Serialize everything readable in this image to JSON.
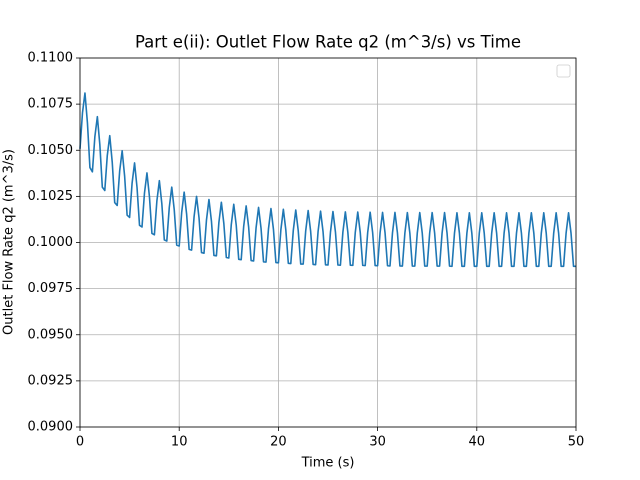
{
  "chart_data": {
    "type": "line",
    "title": "Part e(ii): Outlet Flow Rate q2 (m^3/s) vs Time",
    "x_label": "Time (s)",
    "y_label": "Outlet Flow Rate q2 (m^3/s)",
    "color": "#1f77b4",
    "grid": true,
    "legend": "upper right",
    "xlim": [
      0,
      50
    ],
    "ylim": [
      0.09,
      0.11
    ],
    "xticks": [
      0,
      10,
      20,
      30,
      40,
      50
    ],
    "yticks": [
      {
        "value": 0.09,
        "label": "0.0900"
      },
      {
        "value": 0.0925,
        "label": "0.0925"
      },
      {
        "value": 0.095,
        "label": "0.0950"
      },
      {
        "value": 0.0975,
        "label": "0.0975"
      },
      {
        "value": 0.1,
        "label": "0.1000"
      },
      {
        "value": 0.1025,
        "label": "0.1025"
      },
      {
        "value": 0.105,
        "label": "0.1050"
      },
      {
        "value": 0.1075,
        "label": "0.1075"
      },
      {
        "value": 0.11,
        "label": "0.1100"
      }
    ],
    "x": [
      0,
      0.25,
      0.5,
      0.75,
      1,
      1.25,
      1.5,
      1.75,
      2,
      2.25,
      2.5,
      2.75,
      3,
      3.25,
      3.5,
      3.75,
      4,
      4.25,
      4.5,
      4.75,
      5,
      5.25,
      5.5,
      5.75,
      6,
      6.25,
      6.5,
      6.75,
      7,
      7.25,
      7.5,
      7.75,
      8,
      8.25,
      8.5,
      8.75,
      9,
      9.25,
      9.5,
      9.75,
      10,
      10.25,
      10.5,
      10.75,
      11,
      11.25,
      11.5,
      11.75,
      12,
      12.25,
      12.5,
      12.75,
      13,
      13.25,
      13.5,
      13.75,
      14,
      14.25,
      14.5,
      14.75,
      15,
      15.25,
      15.5,
      15.75,
      16,
      16.25,
      16.5,
      16.75,
      17,
      17.25,
      17.5,
      17.75,
      18,
      18.25,
      18.5,
      18.75,
      19,
      19.25,
      19.5,
      19.75,
      20,
      20.25,
      20.5,
      20.75,
      21,
      21.25,
      21.5,
      21.75,
      22,
      22.25,
      22.5,
      22.75,
      23,
      23.25,
      23.5,
      23.75,
      24,
      24.25,
      24.5,
      24.75,
      25,
      25.25,
      25.5,
      25.75,
      26,
      26.25,
      26.5,
      26.75,
      27,
      27.25,
      27.5,
      27.75,
      28,
      28.25,
      28.5,
      28.75,
      29,
      29.25,
      29.5,
      29.75,
      30,
      30.25,
      30.5,
      30.75,
      31,
      31.25,
      31.5,
      31.75,
      32,
      32.25,
      32.5,
      32.75,
      33,
      33.25,
      33.5,
      33.75,
      34,
      34.25,
      34.5,
      34.75,
      35,
      35.25,
      35.5,
      35.75,
      36,
      36.25,
      36.5,
      36.75,
      37,
      37.25,
      37.5,
      37.75,
      38,
      38.25,
      38.5,
      38.75,
      39,
      39.25,
      39.5,
      39.75,
      40,
      40.25,
      40.5,
      40.75,
      41,
      41.25,
      41.5,
      41.75,
      42,
      42.25,
      42.5,
      42.75,
      43,
      43.25,
      43.5,
      43.75,
      44,
      44.25,
      44.5,
      44.75,
      45,
      45.25,
      45.5,
      45.75,
      46,
      46.25,
      46.5,
      46.75,
      47,
      47.25,
      47.5,
      47.75,
      48,
      48.25,
      48.5,
      48.75,
      49,
      49.25,
      49.5,
      49.75,
      50
    ],
    "values": [
      0.10508,
      0.10703,
      0.1081,
      0.10648,
      0.10406,
      0.10383,
      0.10574,
      0.10682,
      0.1053,
      0.103,
      0.10282,
      0.10471,
      0.10579,
      0.10435,
      0.10216,
      0.10201,
      0.10388,
      0.10497,
      0.10359,
      0.10148,
      0.10136,
      0.10321,
      0.10431,
      0.10298,
      0.10093,
      0.10084,
      0.10268,
      0.10377,
      0.10249,
      0.10049,
      0.10042,
      0.10225,
      0.10335,
      0.1021,
      0.10014,
      0.10008,
      0.1019,
      0.103,
      0.10178,
      0.09986,
      0.09981,
      0.10163,
      0.10273,
      0.10153,
      0.09963,
      0.09959,
      0.1014,
      0.1025,
      0.10133,
      0.09945,
      0.09942,
      0.10122,
      0.10233,
      0.10116,
      0.0993,
      0.09928,
      0.10108,
      0.10218,
      0.10103,
      0.09919,
      0.09916,
      0.10097,
      0.10207,
      0.10093,
      0.09909,
      0.09907,
      0.10087,
      0.10198,
      0.10084,
      0.09902,
      0.099,
      0.1008,
      0.1019,
      0.10077,
      0.09895,
      0.09894,
      0.10074,
      0.10184,
      0.10072,
      0.09891,
      0.0989,
      0.10069,
      0.1018,
      0.10067,
      0.09887,
      0.09886,
      0.10065,
      0.10176,
      0.10064,
      0.09883,
      0.09883,
      0.10062,
      0.10173,
      0.10061,
      0.09881,
      0.0988,
      0.1006,
      0.1017,
      0.10059,
      0.09879,
      0.09878,
      0.10057,
      0.10168,
      0.10057,
      0.09878,
      0.09877,
      0.10056,
      0.10166,
      0.10056,
      0.09877,
      0.09876,
      0.10055,
      0.10165,
      0.10055,
      0.09876,
      0.09875,
      0.10054,
      0.10164,
      0.10054,
      0.09875,
      0.09874,
      0.10053,
      0.10163,
      0.10053,
      0.09874,
      0.09873,
      0.10052,
      0.10163,
      0.10052,
      0.09873,
      0.09872,
      0.10051,
      0.10162,
      0.10051,
      0.09872,
      0.09872,
      0.10051,
      0.10162,
      0.10051,
      0.09872,
      0.09872,
      0.10051,
      0.10162,
      0.10051,
      0.09872,
      0.09872,
      0.10051,
      0.10162,
      0.10051,
      0.09872,
      0.09871,
      0.1005,
      0.10161,
      0.1005,
      0.09871,
      0.09871,
      0.1005,
      0.10161,
      0.1005,
      0.09871,
      0.09871,
      0.1005,
      0.10161,
      0.1005,
      0.09871,
      0.09871,
      0.1005,
      0.10161,
      0.1005,
      0.09871,
      0.09871,
      0.1005,
      0.10161,
      0.1005,
      0.09871,
      0.09871,
      0.1005,
      0.10161,
      0.1005,
      0.09871,
      0.09871,
      0.1005,
      0.10161,
      0.1005,
      0.09871,
      0.09871,
      0.1005,
      0.10161,
      0.1005,
      0.09871,
      0.09871,
      0.1005,
      0.10161,
      0.1005,
      0.09871,
      0.09871,
      0.1005,
      0.10161,
      0.1005,
      0.09871,
      0.09871
    ]
  }
}
